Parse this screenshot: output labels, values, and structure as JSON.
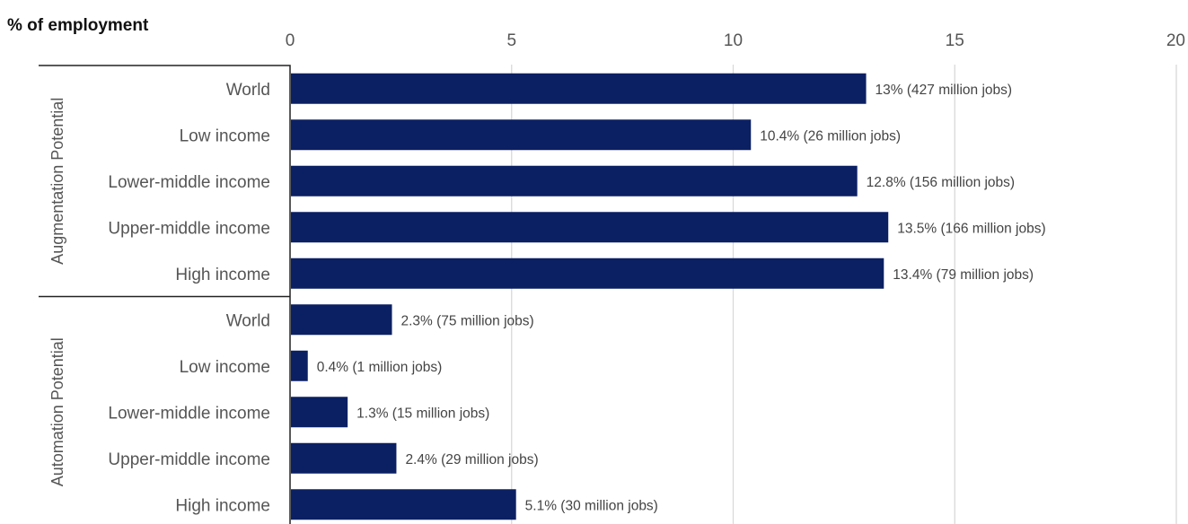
{
  "chart_data": {
    "type": "bar",
    "orientation": "horizontal",
    "unit_label": "% of employment",
    "xlim": [
      0,
      20
    ],
    "x_ticks": [
      "0",
      "5",
      "10",
      "15",
      "20"
    ],
    "grid": true,
    "bar_color": "#0b2063",
    "groups": [
      {
        "name": "Augmentation Potential",
        "categories": [
          "World",
          "Low income",
          "Lower-middle income",
          "Upper-middle income",
          "High income"
        ],
        "values": [
          13,
          10.4,
          12.8,
          13.5,
          13.4
        ],
        "data_labels": [
          "13% (427 million jobs)",
          "10.4% (26 million jobs)",
          "12.8% (156 million jobs)",
          "13.5% (166 million jobs)",
          "13.4% (79 million jobs)"
        ]
      },
      {
        "name": "Automation Potential",
        "categories": [
          "World",
          "Low income",
          "Lower-middle income",
          "Upper-middle income",
          "High income"
        ],
        "values": [
          2.3,
          0.4,
          1.3,
          2.4,
          5.1
        ],
        "data_labels": [
          "2.3% (75 million jobs)",
          "0.4% (1 million jobs)",
          "1.3% (15 million jobs)",
          "2.4% (29 million jobs)",
          "5.1% (30 million jobs)"
        ]
      }
    ]
  }
}
